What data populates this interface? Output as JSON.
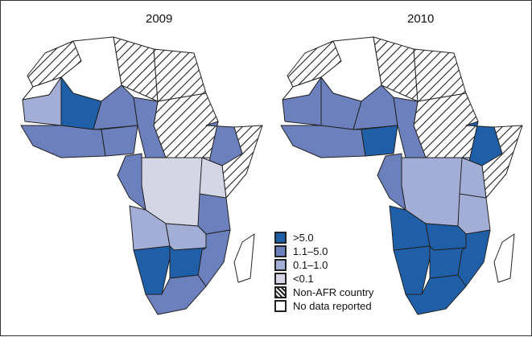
{
  "years": [
    "2009",
    "2010"
  ],
  "legend": [
    {
      "key": "c4",
      "label": ">5.0",
      "color": "#1f5fa8"
    },
    {
      "key": "c3",
      "label": "1.1–5.0",
      "color": "#6b80bd"
    },
    {
      "key": "c2",
      "label": "0.1–1.0",
      "color": "#a3aed6"
    },
    {
      "key": "c1",
      "label": "<0.1",
      "color": "#d4d6e6"
    },
    {
      "key": "hatch",
      "label": "Non-AFR country",
      "color": "hatch"
    },
    {
      "key": "none",
      "label": "No data reported",
      "color": "#ffffff"
    }
  ],
  "regions": {
    "morocco": [
      "hatch",
      "hatch"
    ],
    "western-sahara": [
      "none",
      "none"
    ],
    "algeria": [
      "none",
      "none"
    ],
    "libya": [
      "hatch",
      "hatch"
    ],
    "egypt": [
      "hatch",
      "hatch"
    ],
    "sudan": [
      "hatch",
      "hatch"
    ],
    "mauritania": [
      "c2",
      "c3"
    ],
    "mali": [
      "c4",
      "c3"
    ],
    "niger": [
      "c3",
      "c3"
    ],
    "chad": [
      "c3",
      "c3"
    ],
    "west-coast": [
      "c3",
      "c3"
    ],
    "nigeria": [
      "c3",
      "c4"
    ],
    "ethiopia": [
      "c3",
      "c4"
    ],
    "somalia": [
      "hatch",
      "hatch"
    ],
    "central": [
      "c1",
      "c2"
    ],
    "cameroon-gabon": [
      "c3",
      "c3"
    ],
    "kenya-uganda": [
      "c1",
      "c2"
    ],
    "tanzania": [
      "c3",
      "c2"
    ],
    "angola": [
      "c2",
      "c4"
    ],
    "zambia-malawi": [
      "c2",
      "c4"
    ],
    "mozambique": [
      "c3",
      "c4"
    ],
    "namibia": [
      "c4",
      "c4"
    ],
    "botswana-zimbabwe": [
      "c4",
      "c4"
    ],
    "south-africa": [
      "c3",
      "c4"
    ],
    "madagascar": [
      "none",
      "none"
    ]
  }
}
